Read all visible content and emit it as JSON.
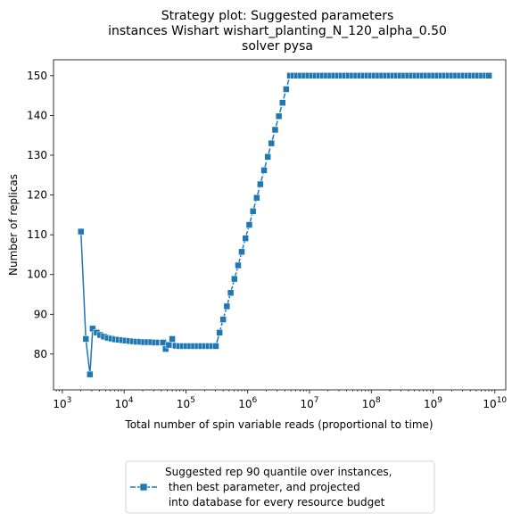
{
  "chart_data": {
    "type": "line",
    "title": [
      "Strategy plot: Suggested parameters",
      "instances Wishart wishart_planting_N_120_alpha_0.50",
      "solver pysa"
    ],
    "xlabel": "Total number of spin variable reads (proportional to time)",
    "ylabel": "Number of replicas",
    "xscale": "log",
    "xlim": [
      720,
      15000000000
    ],
    "ylim": [
      71,
      154
    ],
    "xticks": [
      {
        "value": 1000,
        "base": "10",
        "exp": "3"
      },
      {
        "value": 10000,
        "base": "10",
        "exp": "4"
      },
      {
        "value": 100000,
        "base": "10",
        "exp": "5"
      },
      {
        "value": 1000000,
        "base": "10",
        "exp": "6"
      },
      {
        "value": 10000000,
        "base": "10",
        "exp": "7"
      },
      {
        "value": 100000000,
        "base": "10",
        "exp": "8"
      },
      {
        "value": 1000000000,
        "base": "10",
        "exp": "9"
      },
      {
        "value": 10000000000,
        "base": "10",
        "exp": "10"
      }
    ],
    "yticks": [
      80,
      90,
      100,
      110,
      120,
      130,
      140,
      150
    ],
    "grid": false,
    "legend_placement": "below",
    "series": [
      {
        "name": "Suggested rep 90 quantile over instances,\n then best parameter, and projected\n into database for every resource budget",
        "color": "#1f77b4",
        "marker": "square",
        "line": "solid-then-dashed",
        "x": [
          2000,
          2400,
          2800,
          3100,
          3600,
          4100,
          4700,
          5400,
          6200,
          7100,
          8100,
          9300,
          10600,
          12200,
          14000,
          16000,
          18300,
          21000,
          24000,
          27500,
          31500,
          36000,
          41200,
          43000,
          47000,
          53000,
          60000,
          68000,
          78000,
          90000,
          103000,
          118000,
          135000,
          155000,
          177000,
          203000,
          232000,
          266000,
          305000,
          350000,
          400000,
          460000,
          530000,
          610000,
          700000,
          800000,
          920000,
          1060000,
          1220000,
          1400000,
          1600000,
          1840000,
          2110000,
          2420000,
          2780000,
          3190000,
          3660000,
          4200000,
          4820000,
          5530000,
          6340000,
          7270000,
          8340000,
          9570000,
          10980000,
          12600000,
          14460000,
          16600000,
          19050000,
          21860000,
          25090000,
          28790000,
          33040000,
          37920000,
          43520000,
          49950000,
          57330000,
          65790000,
          75500000,
          86650000,
          99450000,
          114100000,
          131000000,
          150300000,
          172500000,
          198000000,
          227200000,
          260800000,
          299300000,
          343500000,
          394200000,
          452400000,
          519200000,
          595900000,
          683900000,
          784900000,
          900800000,
          1034000000,
          1186000000,
          1362000000,
          1563000000,
          1794000000,
          2058000000,
          2362000000,
          2711000000,
          3112000000,
          3571000000,
          4099000000,
          4704000000,
          5398000000,
          6196000000,
          7111000000,
          8000000000
        ],
        "values": [
          110.8,
          83.8,
          74.9,
          86.4,
          85.4,
          84.8,
          84.4,
          84.1,
          83.9,
          83.7,
          83.6,
          83.5,
          83.4,
          83.3,
          83.2,
          83.1,
          83.1,
          83.0,
          83.0,
          83.0,
          82.9,
          82.9,
          82.9,
          82.9,
          81.3,
          82.3,
          83.8,
          82.1,
          82.0,
          82.0,
          82.0,
          82.0,
          82.0,
          82.0,
          82.0,
          82.0,
          82.0,
          82.0,
          82.0,
          85.4,
          88.7,
          92.0,
          95.4,
          98.9,
          102.3,
          105.7,
          109.1,
          112.5,
          115.9,
          119.3,
          122.7,
          126.2,
          129.6,
          133.0,
          136.4,
          139.8,
          143.2,
          146.6,
          150.0,
          150.0,
          150.0,
          150.0,
          150.0,
          150.0,
          150.0,
          150.0,
          150.0,
          150.0,
          150.0,
          150.0,
          150.0,
          150.0,
          150.0,
          150.0,
          150.0,
          150.0,
          150.0,
          150.0,
          150.0,
          150.0,
          150.0,
          150.0,
          150.0,
          150.0,
          150.0,
          150.0,
          150.0,
          150.0,
          150.0,
          150.0,
          150.0,
          150.0,
          150.0,
          150.0,
          150.0,
          150.0,
          150.0,
          150.0,
          150.0,
          150.0,
          150.0,
          150.0,
          150.0,
          150.0,
          150.0,
          150.0,
          150.0,
          150.0,
          150.0,
          150.0,
          150.0,
          150.0,
          150.0
        ],
        "dashed_from_index": 39
      }
    ]
  }
}
